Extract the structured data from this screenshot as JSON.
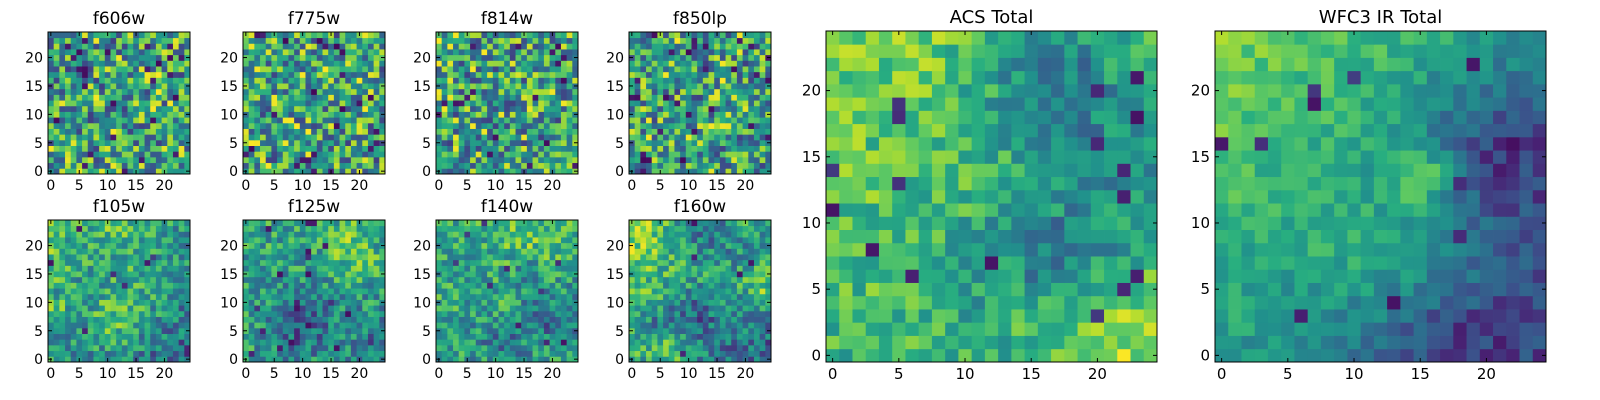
{
  "figure": {
    "colormap": "viridis",
    "colors": {
      "low": "#440154",
      "mid": "#21918c",
      "high": "#fde725",
      "axes": "#000000"
    }
  },
  "chart_data": [
    {
      "type": "heatmap",
      "title": "f606w",
      "xlim": [
        -0.5,
        24.5
      ],
      "ylim": [
        -0.5,
        24.5
      ],
      "xticks": [
        0,
        5,
        10,
        15,
        20
      ],
      "yticks": [
        0,
        5,
        10,
        15,
        20
      ],
      "size": 25,
      "grid": false,
      "legend": "none"
    },
    {
      "type": "heatmap",
      "title": "f775w",
      "xlim": [
        -0.5,
        24.5
      ],
      "ylim": [
        -0.5,
        24.5
      ],
      "xticks": [
        0,
        5,
        10,
        15,
        20
      ],
      "yticks": [
        0,
        5,
        10,
        15,
        20
      ],
      "size": 25,
      "grid": false,
      "legend": "none"
    },
    {
      "type": "heatmap",
      "title": "f814w",
      "xlim": [
        -0.5,
        24.5
      ],
      "ylim": [
        -0.5,
        24.5
      ],
      "xticks": [
        0,
        5,
        10,
        15,
        20
      ],
      "yticks": [
        0,
        5,
        10,
        15,
        20
      ],
      "size": 25,
      "grid": false,
      "legend": "none"
    },
    {
      "type": "heatmap",
      "title": "f850lp",
      "xlim": [
        -0.5,
        24.5
      ],
      "ylim": [
        -0.5,
        24.5
      ],
      "xticks": [
        0,
        5,
        10,
        15,
        20
      ],
      "yticks": [
        0,
        5,
        10,
        15,
        20
      ],
      "size": 25,
      "grid": false,
      "legend": "none"
    },
    {
      "type": "heatmap",
      "title": "f105w",
      "xlim": [
        -0.5,
        24.5
      ],
      "ylim": [
        -0.5,
        24.5
      ],
      "xticks": [
        0,
        5,
        10,
        15,
        20
      ],
      "yticks": [
        0,
        5,
        10,
        15,
        20
      ],
      "size": 25,
      "grid": false,
      "legend": "none"
    },
    {
      "type": "heatmap",
      "title": "f125w",
      "xlim": [
        -0.5,
        24.5
      ],
      "ylim": [
        -0.5,
        24.5
      ],
      "xticks": [
        0,
        5,
        10,
        15,
        20
      ],
      "yticks": [
        0,
        5,
        10,
        15,
        20
      ],
      "size": 25,
      "grid": false,
      "legend": "none"
    },
    {
      "type": "heatmap",
      "title": "f140w",
      "xlim": [
        -0.5,
        24.5
      ],
      "ylim": [
        -0.5,
        24.5
      ],
      "xticks": [
        0,
        5,
        10,
        15,
        20
      ],
      "yticks": [
        0,
        5,
        10,
        15,
        20
      ],
      "size": 25,
      "grid": false,
      "legend": "none"
    },
    {
      "type": "heatmap",
      "title": "f160w",
      "xlim": [
        -0.5,
        24.5
      ],
      "ylim": [
        -0.5,
        24.5
      ],
      "xticks": [
        0,
        5,
        10,
        15,
        20
      ],
      "yticks": [
        0,
        5,
        10,
        15,
        20
      ],
      "size": 25,
      "grid": false,
      "legend": "none"
    },
    {
      "type": "heatmap",
      "title": "ACS Total",
      "xlim": [
        -0.5,
        24.5
      ],
      "ylim": [
        -0.5,
        24.5
      ],
      "xticks": [
        0,
        5,
        10,
        15,
        20
      ],
      "yticks": [
        0,
        5,
        10,
        15,
        20
      ],
      "size": 25,
      "grid": false,
      "legend": "none"
    },
    {
      "type": "heatmap",
      "title": "WFC3 IR Total",
      "xlim": [
        -0.5,
        24.5
      ],
      "ylim": [
        -0.5,
        24.5
      ],
      "xticks": [
        0,
        5,
        10,
        15,
        20
      ],
      "yticks": [
        0,
        5,
        10,
        15,
        20
      ],
      "size": 25,
      "grid": false,
      "legend": "none"
    }
  ]
}
